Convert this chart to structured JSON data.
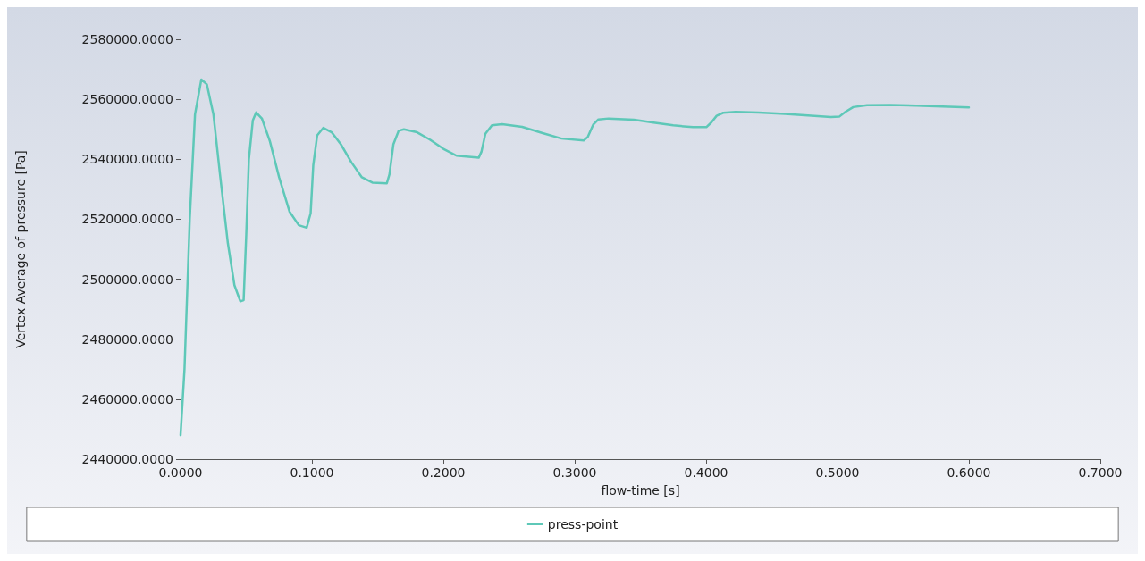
{
  "chart_data": {
    "type": "line",
    "xlabel": "flow-time [s]",
    "ylabel": "Vertex Average of pressure [Pa]",
    "xlim": [
      0,
      0.7
    ],
    "xticks": [
      {
        "value": 0,
        "label": "0.0000"
      },
      {
        "value": 0.1,
        "label": "0.1000"
      },
      {
        "value": 0.2,
        "label": "0.2000"
      },
      {
        "value": 0.3,
        "label": "0.3000"
      },
      {
        "value": 0.4,
        "label": "0.4000"
      },
      {
        "value": 0.5,
        "label": "0.5000"
      },
      {
        "value": 0.6,
        "label": "0.6000"
      },
      {
        "value": 0.7,
        "label": "0.7000"
      }
    ],
    "ylim": [
      2440000,
      2580000
    ],
    "yticks": [
      {
        "value": 2440000,
        "label": "2440000.0000"
      },
      {
        "value": 2460000,
        "label": "2460000.0000"
      },
      {
        "value": 2480000,
        "label": "2480000.0000"
      },
      {
        "value": 2500000,
        "label": "2500000.0000"
      },
      {
        "value": 2520000,
        "label": "2520000.0000"
      },
      {
        "value": 2540000,
        "label": "2540000.0000"
      },
      {
        "value": 2560000,
        "label": "2560000.0000"
      },
      {
        "value": 2580000,
        "label": "2580000.0000"
      }
    ],
    "grid": false,
    "legend": "bottom",
    "marker": "none",
    "line_style": "solid",
    "x": [
      0,
      0.003,
      0.007,
      0.011,
      0.0158,
      0.02,
      0.025,
      0.03,
      0.036,
      0.041,
      0.0455,
      0.048,
      0.05,
      0.052,
      0.055,
      0.0575,
      0.062,
      0.068,
      0.075,
      0.083,
      0.09,
      0.096,
      0.099,
      0.101,
      0.104,
      0.1087,
      0.115,
      0.122,
      0.13,
      0.138,
      0.146,
      0.157,
      0.159,
      0.162,
      0.166,
      0.17,
      0.18,
      0.19,
      0.2,
      0.21,
      0.2269,
      0.229,
      0.232,
      0.237,
      0.2447,
      0.26,
      0.275,
      0.29,
      0.307,
      0.31,
      0.314,
      0.318,
      0.3258,
      0.345,
      0.36,
      0.375,
      0.39,
      0.4002,
      0.404,
      0.408,
      0.413,
      0.4225,
      0.44,
      0.46,
      0.48,
      0.495,
      0.5013,
      0.506,
      0.512,
      0.5224,
      0.54,
      0.56,
      0.58,
      0.6
    ],
    "series": [
      {
        "name": "press-point",
        "color": "#5ec8b8",
        "values": [
          2448000,
          2470000,
          2520000,
          2555000,
          2566600,
          2565000,
          2555000,
          2535000,
          2512000,
          2498000,
          2492600,
          2493000,
          2515000,
          2540000,
          2553000,
          2555600,
          2553500,
          2546000,
          2534000,
          2522500,
          2518000,
          2517200,
          2522000,
          2538000,
          2548000,
          2550500,
          2549000,
          2545000,
          2539000,
          2534000,
          2532200,
          2532000,
          2535000,
          2545000,
          2549500,
          2550000,
          2549000,
          2546500,
          2543500,
          2541200,
          2540500,
          2542500,
          2548500,
          2551300,
          2551700,
          2550800,
          2548800,
          2546900,
          2546300,
          2547500,
          2551500,
          2553300,
          2553600,
          2553200,
          2552200,
          2551300,
          2550700,
          2550700,
          2552300,
          2554500,
          2555500,
          2555800,
          2555600,
          2555100,
          2554500,
          2554100,
          2554200,
          2555800,
          2557400,
          2558000,
          2558100,
          2557900,
          2557600,
          2557300
        ]
      }
    ]
  }
}
